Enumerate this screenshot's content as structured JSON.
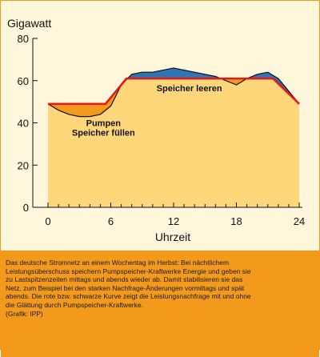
{
  "colors": {
    "background": "#fff7db",
    "base_area": "#ffd77a",
    "pump_area": "#f39a1d",
    "surplus_area": "#2f75b5",
    "smoothed_line": "#e01b1b",
    "demand_line": "#111111",
    "caption_bg": "#f39a1d"
  },
  "chart_data": {
    "type": "area",
    "ylabel": "Gigawatt",
    "xlabel": "Uhrzeit",
    "xlim": [
      0,
      24
    ],
    "ylim": [
      0,
      80
    ],
    "x_ticks": [
      0,
      6,
      12,
      18,
      24
    ],
    "y_ticks": [
      0,
      20,
      40,
      60,
      80
    ],
    "grid": false,
    "annotations": [
      {
        "text": "Speicher leeren",
        "x": 13.5,
        "y": 55
      },
      {
        "text": "Pumpen",
        "x": 5.3,
        "y": 38.5
      },
      {
        "text": "Speicher füllen",
        "x": 5.3,
        "y": 34
      }
    ],
    "series": [
      {
        "style": "black curve",
        "x": [
          0,
          1,
          2,
          3,
          4,
          5,
          6,
          7,
          8,
          9,
          10,
          11,
          12,
          13,
          14,
          15,
          16,
          17,
          18,
          19,
          20,
          21,
          22,
          23,
          24
        ],
        "values": [
          49,
          46,
          44,
          43,
          43,
          44,
          48,
          58,
          63,
          64,
          64,
          65,
          66,
          65,
          64,
          63,
          62,
          60,
          58,
          61,
          63,
          64,
          61,
          55,
          49
        ]
      },
      {
        "style": "red curve",
        "x": [
          0,
          5.5,
          7.5,
          21.5,
          24
        ],
        "values": [
          49,
          49,
          61,
          61,
          49
        ]
      }
    ]
  },
  "caption": {
    "lines": [
      "Das deutsche Stromnetz an einem Wochentag im Herbst: Bei nächtlichem",
      "Leistungsüberschuss speichern Pumpspeicher-Kraftwerke Energie und geben sie",
      "zu Lastspitzenzeiten mittags und abends wieder ab. Damit stabilisieren sie das",
      "Netz, zum Beispiel bei den starken Nachfrage-Änderungen vormittags und spät",
      "abends. Die rote bzw. schwarze Kurve zeigt die Leistungsnachfrage mit und ohne",
      "die Glättung durch Pumpspeicher-Kraftwerke.",
      "(Grafik: IPP)"
    ]
  }
}
